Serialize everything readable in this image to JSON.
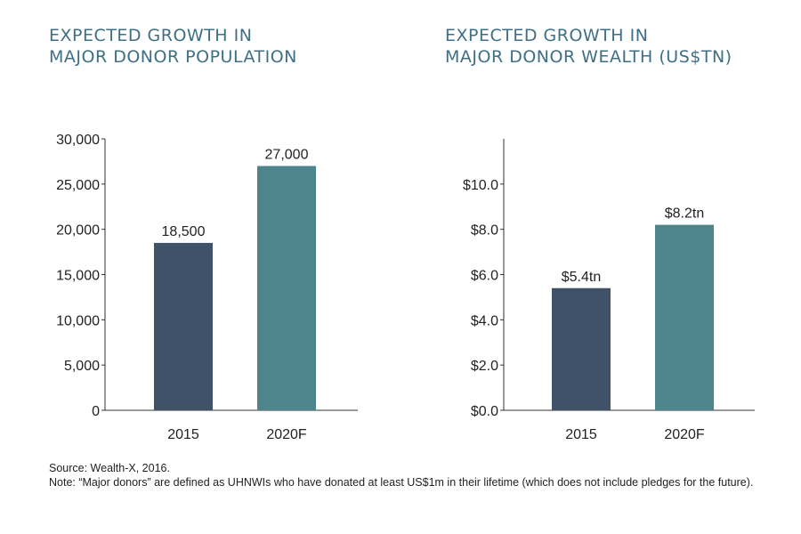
{
  "colors": {
    "title": "#3e6f86",
    "bar_2015": "#3f5268",
    "bar_2020": "#4e858c",
    "axis": "#333333",
    "text": "#222222"
  },
  "footer": {
    "source": "Source: Wealth-X, 2016.",
    "note": "Note: “Major donors” are defined as UHNWIs who have donated at least US$1m in their lifetime (which does not include pledges for the future)."
  },
  "chart_data": [
    {
      "type": "bar",
      "title_lines": [
        "EXPECTED GROWTH IN",
        "MAJOR DONOR POPULATION"
      ],
      "categories": [
        "2015",
        "2020F"
      ],
      "values": [
        18500,
        27000
      ],
      "data_labels": [
        "18,500",
        "27,000"
      ],
      "ylim": [
        0,
        30000
      ],
      "yticks": [
        0,
        5000,
        10000,
        15000,
        20000,
        25000,
        30000
      ],
      "ytick_labels": [
        "0",
        "5,000",
        "10,000",
        "15,000",
        "20,000",
        "25,000",
        "30,000"
      ],
      "xlabel": "",
      "ylabel": "",
      "grid": false,
      "legend": "none"
    },
    {
      "type": "bar",
      "title_lines": [
        "EXPECTED GROWTH IN",
        "MAJOR DONOR WEALTH (US$TN)"
      ],
      "categories": [
        "2015",
        "2020F"
      ],
      "values": [
        5.4,
        8.2
      ],
      "data_labels": [
        "$5.4tn",
        "$8.2tn"
      ],
      "ylim": [
        0,
        12
      ],
      "yticks": [
        0,
        2,
        4,
        6,
        8,
        10
      ],
      "ytick_labels": [
        "$0.0",
        "$2.0",
        "$4.0",
        "$6.0",
        "$8.0",
        "$10.0"
      ],
      "xlabel": "",
      "ylabel": "",
      "grid": false,
      "legend": "none"
    }
  ]
}
